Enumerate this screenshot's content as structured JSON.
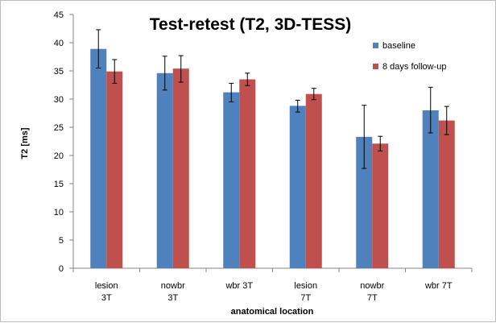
{
  "chart_data": {
    "type": "bar",
    "title": "Test-retest (T2, 3D-TESS)",
    "xlabel": "anatomical location",
    "ylabel": "T2 [ms]",
    "ylim": [
      0,
      45
    ],
    "ytick_step": 5,
    "yticks": [
      "0",
      "5",
      "10",
      "15",
      "20",
      "25",
      "30",
      "35",
      "40",
      "45"
    ],
    "grid": false,
    "legend_position": "top-right",
    "categories": [
      [
        "lesion",
        "3T"
      ],
      [
        "nowbr",
        "3T"
      ],
      [
        "wbr 3T"
      ],
      [
        "lesion",
        "7T"
      ],
      [
        "nowbr",
        "7T"
      ],
      [
        "wbr 7T"
      ]
    ],
    "series": [
      {
        "name": "baseline",
        "color": "#4f81bd",
        "values": [
          38.9,
          34.6,
          31.2,
          28.8,
          23.3,
          28.0
        ],
        "error_low": [
          35.5,
          31.6,
          29.5,
          27.7,
          17.7,
          24.0
        ],
        "error_high": [
          42.3,
          37.6,
          32.8,
          29.8,
          28.9,
          32.1
        ]
      },
      {
        "name": "8 days follow-up",
        "color": "#c0504d",
        "values": [
          34.9,
          35.4,
          33.5,
          30.9,
          22.1,
          26.2
        ],
        "error_low": [
          32.8,
          33.0,
          32.4,
          29.9,
          20.8,
          23.7
        ],
        "error_high": [
          37.0,
          37.7,
          34.6,
          31.9,
          23.4,
          28.7
        ]
      }
    ]
  }
}
